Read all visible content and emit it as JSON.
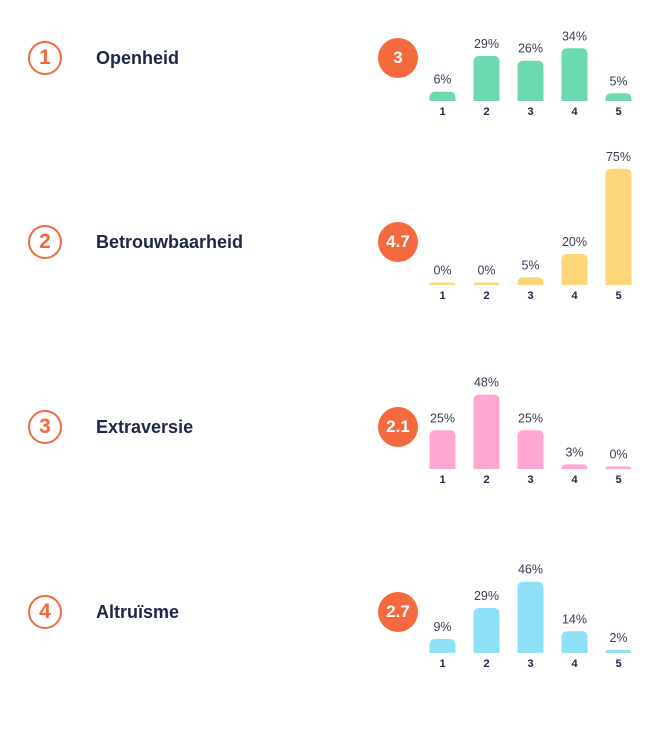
{
  "chart_data": [
    {
      "type": "bar",
      "title": "Openheid",
      "rank": "1",
      "score": "3",
      "color": "#6dd9b1",
      "categories": [
        "1",
        "2",
        "3",
        "4",
        "5"
      ],
      "values": [
        6,
        29,
        26,
        34,
        5
      ],
      "labels": [
        "6%",
        "29%",
        "26%",
        "34%",
        "5%"
      ],
      "ylim": [
        0,
        100
      ]
    },
    {
      "type": "bar",
      "title": "Betrouwbaarheid",
      "rank": "2",
      "score": "4.7",
      "color": "#fdd67a",
      "categories": [
        "1",
        "2",
        "3",
        "4",
        "5"
      ],
      "values": [
        0,
        0,
        5,
        20,
        75
      ],
      "labels": [
        "0%",
        "0%",
        "5%",
        "20%",
        "75%"
      ],
      "ylim": [
        0,
        100
      ]
    },
    {
      "type": "bar",
      "title": "Extraversie",
      "rank": "3",
      "score": "2.1",
      "color": "#ffa6d3",
      "categories": [
        "1",
        "2",
        "3",
        "4",
        "5"
      ],
      "values": [
        25,
        48,
        25,
        3,
        0
      ],
      "labels": [
        "25%",
        "48%",
        "25%",
        "3%",
        "0%"
      ],
      "ylim": [
        0,
        100
      ]
    },
    {
      "type": "bar",
      "title": "Altruïsme",
      "rank": "4",
      "score": "2.7",
      "color": "#8fe0f7",
      "categories": [
        "1",
        "2",
        "3",
        "4",
        "5"
      ],
      "values": [
        9,
        29,
        46,
        14,
        2
      ],
      "labels": [
        "9%",
        "29%",
        "46%",
        "14%",
        "2%"
      ],
      "ylim": [
        0,
        100
      ]
    }
  ]
}
